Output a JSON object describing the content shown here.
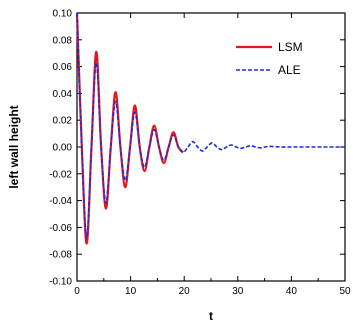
{
  "chart_data": {
    "type": "line",
    "title": "",
    "xlabel": "t",
    "ylabel": "left wall height",
    "xlim": [
      0,
      50
    ],
    "ylim": [
      -0.1,
      0.1
    ],
    "x_ticks": [
      0,
      10,
      20,
      30,
      40,
      50
    ],
    "x_tick_labels": [
      "0",
      "10",
      "20",
      "30",
      "40",
      "50"
    ],
    "y_ticks": [
      0.1,
      0.08,
      0.06,
      0.04,
      0.02,
      0.0,
      -0.02,
      -0.04,
      -0.06,
      -0.08,
      -0.1
    ],
    "y_tick_labels": [
      "0.10",
      "0.08",
      "0.06",
      "0.04",
      "0.02",
      "0.00",
      "-0.02",
      "-0.04",
      "-0.06",
      "-0.08",
      "-0.10"
    ],
    "grid": false,
    "legend_position": "top-right",
    "series": [
      {
        "name": "LSM",
        "color": "#e8141c",
        "line_style": "solid",
        "x": [
          0,
          0.9,
          1.8,
          2.7,
          3.6,
          4.5,
          5.4,
          6.3,
          7.2,
          8.1,
          9.0,
          9.9,
          10.8,
          11.7,
          12.6,
          13.5,
          14.4,
          15.3,
          16.2,
          17.1,
          18.0,
          18.9,
          19.8
        ],
        "y": [
          0.1,
          0.0,
          -0.072,
          0.0,
          0.071,
          0.0,
          -0.046,
          0.0,
          0.041,
          0.0,
          -0.03,
          0.0,
          0.031,
          0.0,
          -0.018,
          0.0,
          0.016,
          0.0,
          -0.012,
          0.0,
          0.011,
          0.0,
          -0.004
        ]
      },
      {
        "name": "ALE",
        "color": "#1a2ed8",
        "line_style": "dashed",
        "x": [
          0,
          0.9,
          1.8,
          2.7,
          3.6,
          4.5,
          5.4,
          6.3,
          7.2,
          8.1,
          9.0,
          9.9,
          10.8,
          11.7,
          12.6,
          13.5,
          14.4,
          15.3,
          16.2,
          17.1,
          18.0,
          18.9,
          19.8,
          20.7,
          21.6,
          22.5,
          23.4,
          24.3,
          25.2,
          26.1,
          27.0,
          27.9,
          28.8,
          29.7,
          30.6,
          31.5,
          32.4,
          33.3,
          34.2,
          35.1,
          36.0,
          37.8,
          39.6,
          42.0,
          45.0,
          50.0
        ],
        "y": [
          0.1,
          0.0,
          -0.068,
          0.0,
          0.063,
          0.0,
          -0.042,
          0.0,
          0.034,
          0.0,
          -0.025,
          0.0,
          0.026,
          0.0,
          -0.015,
          0.0,
          0.013,
          0.0,
          -0.01,
          0.0,
          0.009,
          0.0,
          -0.004,
          0.0,
          0.004,
          0.0,
          -0.003,
          0.0,
          0.003,
          0.0,
          -0.002,
          0.0,
          0.0015,
          0.0,
          -0.001,
          0.0,
          0.001,
          0.0,
          -0.0006,
          0.0,
          0.0005,
          0.0,
          0.0,
          0.0,
          0.0,
          0.0
        ]
      }
    ]
  }
}
